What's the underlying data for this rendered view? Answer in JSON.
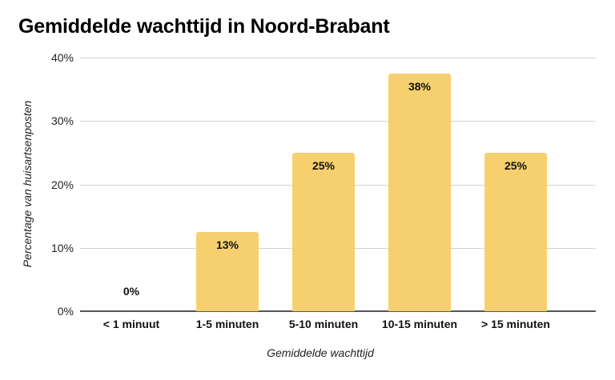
{
  "chart_data": {
    "type": "bar",
    "title": "Gemiddelde wachttijd in Noord-Brabant",
    "xlabel": "Gemiddelde wachttijd",
    "ylabel": "Percentage van huisartsenposten",
    "categories": [
      "< 1 minuut",
      "1-5 minuten",
      "5-10 minuten",
      "10-15 minuten",
      "> 15 minuten"
    ],
    "values": [
      0,
      12.5,
      25,
      37.5,
      25
    ],
    "data_labels": [
      "0%",
      "13%",
      "25%",
      "38%",
      "25%"
    ],
    "ylim": [
      0,
      40
    ],
    "yticks": [
      "0%",
      "10%",
      "20%",
      "30%",
      "40%"
    ],
    "grid": true,
    "legend": null,
    "bar_color": "#f6d06f"
  }
}
